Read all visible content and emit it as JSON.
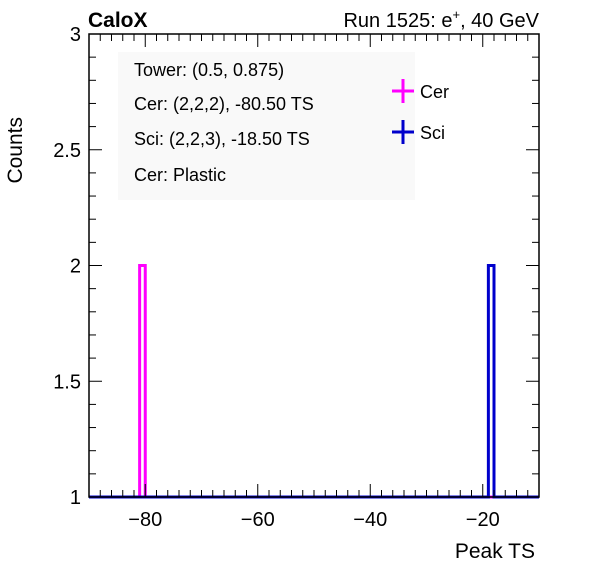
{
  "header": {
    "experiment": "CaloX",
    "run_label": "Run 1525: e",
    "run_sup": "+",
    "run_suffix": ", 40 GeV"
  },
  "info_box": {
    "lines": [
      "Tower: (0.5, 0.875)",
      "Cer: (2,2,2), -80.50 TS",
      "Sci: (2,2,3), -18.50 TS",
      "Cer: Plastic"
    ]
  },
  "colors": {
    "cer": "#ff00ff",
    "sci": "#0000cc",
    "axis": "#000000"
  },
  "chart_data": {
    "type": "line",
    "title": "",
    "xlabel": "Peak TS",
    "ylabel": "Counts",
    "xlim": [
      -90,
      -10
    ],
    "ylim": [
      1,
      3
    ],
    "x_ticks": [
      -80,
      -60,
      -40,
      -20
    ],
    "x_tick_labels": [
      "−80",
      "−60",
      "−40",
      "−20"
    ],
    "y_ticks": [
      1,
      1.5,
      2,
      2.5,
      3
    ],
    "y_tick_labels": [
      "1",
      "1.5",
      "2",
      "2.5",
      "3"
    ],
    "legend": "top-right",
    "series": [
      {
        "name": "Cer",
        "color": "#ff00ff",
        "bin_low": -81,
        "bin_high": -80,
        "value": 2,
        "baseline": 1
      },
      {
        "name": "Sci",
        "color": "#0000cc",
        "bin_low": -19,
        "bin_high": -18,
        "value": 2,
        "baseline": 1
      }
    ]
  }
}
